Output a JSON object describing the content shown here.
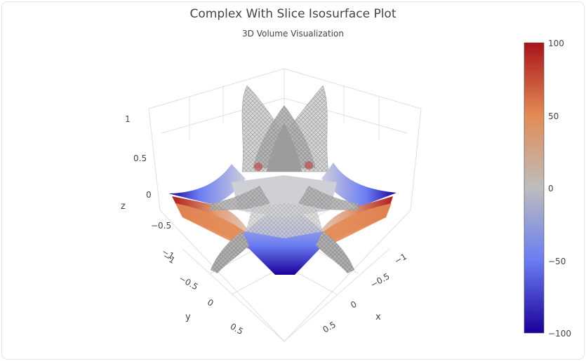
{
  "chart_data": {
    "type": "isosurface",
    "title": "Complex With Slice Isosurface Plot",
    "subtitle": "3D Volume Visualization",
    "axes": {
      "x": {
        "label": "x",
        "range": [
          -1,
          1
        ],
        "ticks": [
          "−1",
          "−0.5",
          "0",
          "0.5"
        ]
      },
      "y": {
        "label": "y",
        "range": [
          -1,
          1
        ],
        "ticks": [
          "−1",
          "−0.5",
          "0",
          "0.5"
        ]
      },
      "z": {
        "label": "z",
        "range": [
          -1,
          1
        ],
        "ticks": [
          "−1",
          "−0.5",
          "0",
          "0.5",
          "1"
        ]
      }
    },
    "colorbar": {
      "min": -100,
      "max": 100,
      "ticks": [
        "100",
        "50",
        "0",
        "−50",
        "−100"
      ],
      "tick_values": [
        100,
        50,
        0,
        -50,
        -100
      ],
      "colorscale": [
        "#1a0099",
        "#6a7df2",
        "#bdbdbd",
        "#e38b55",
        "#a8141a"
      ]
    },
    "slice": {
      "axis": "z",
      "position": 0
    },
    "isosurface_color": "#9a9a9a",
    "grid": true
  }
}
